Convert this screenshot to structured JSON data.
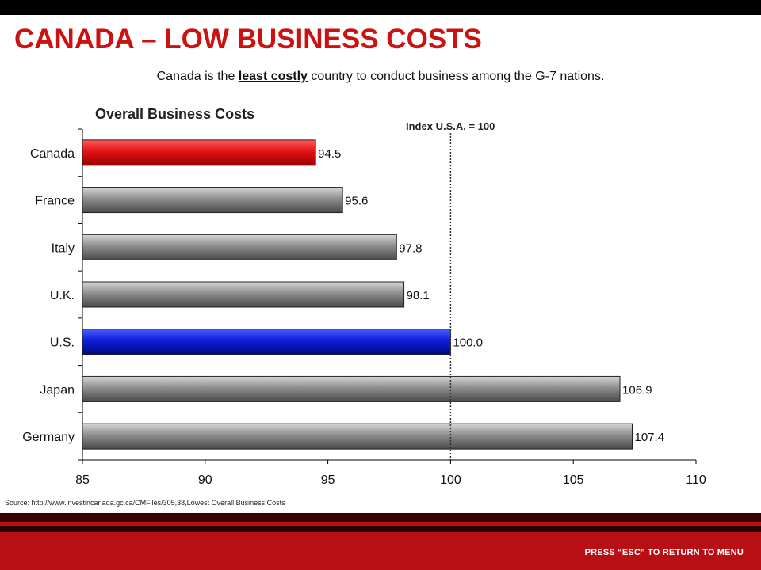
{
  "page": {
    "title": "CANADA – LOW BUSINESS COSTS",
    "subtitle_pre": "Canada is the ",
    "subtitle_emph": "least costly",
    "subtitle_post": " country to conduct business among the G-7 nations.",
    "source": "Source: http://www.investincanada.gc.ca/CMFiles/305,38,Lowest Overall Business Costs",
    "footer": "PRESS “ESC” TO RETURN TO MENU"
  },
  "chart_data": {
    "type": "bar",
    "orientation": "horizontal",
    "title": "Overall Business Costs",
    "annotation": "Index U.S.A. = 100",
    "reference_line": 100,
    "categories": [
      "Canada",
      "France",
      "Italy",
      "U.K.",
      "U.S.",
      "Japan",
      "Germany"
    ],
    "values": [
      94.5,
      95.6,
      97.8,
      98.1,
      100.0,
      106.9,
      107.4
    ],
    "value_labels": [
      "94.5",
      "95.6",
      "97.8",
      "98.1",
      "100.0",
      "106.9",
      "107.4"
    ],
    "xlim": [
      85,
      110
    ],
    "xticks": [
      85,
      90,
      95,
      100,
      105,
      110
    ],
    "grid": false,
    "colors": {
      "Canada": "#e31212",
      "U.S.": "#0d1fd8",
      "default": "#8a8a8a"
    }
  }
}
